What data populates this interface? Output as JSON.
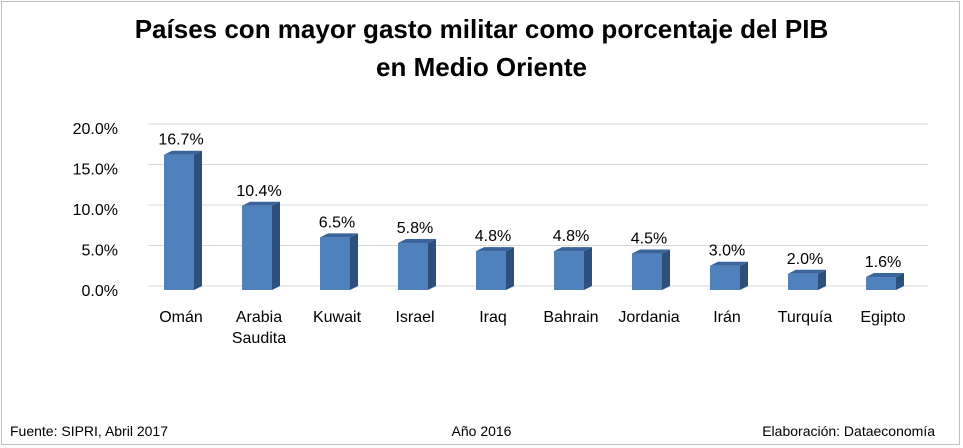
{
  "chart_data": {
    "type": "bar",
    "title_lines": [
      "Países con mayor gasto militar como porcentaje del PIB",
      "en Medio Oriente"
    ],
    "categories": [
      [
        "Omán"
      ],
      [
        "Arabia",
        "Saudita"
      ],
      [
        "Kuwait"
      ],
      [
        "Israel"
      ],
      [
        "Iraq"
      ],
      [
        "Bahrain"
      ],
      [
        "Jordania"
      ],
      [
        "Irán"
      ],
      [
        "Turquía"
      ],
      [
        "Egipto"
      ]
    ],
    "values": [
      16.7,
      10.4,
      6.5,
      5.8,
      4.8,
      4.8,
      4.5,
      3.0,
      2.0,
      1.6
    ],
    "data_labels": [
      "16.7%",
      "10.4%",
      "6.5%",
      "5.8%",
      "4.8%",
      "4.8%",
      "4.5%",
      "3.0%",
      "2.0%",
      "1.6%"
    ],
    "y_ticks": [
      0,
      5,
      10,
      15,
      20
    ],
    "y_tick_labels": [
      "0.0%",
      "5.0%",
      "10.0%",
      "15.0%",
      "20.0%"
    ],
    "ylim": [
      0,
      20
    ],
    "grid": true,
    "legend": "none",
    "bar_color": "#4f81bd",
    "bar_side_color": "#2c4f7c",
    "bar_top_color": "#3a649b"
  },
  "footer": {
    "source": "Fuente: SIPRI, Abril 2017",
    "year": "Año 2016",
    "credit": "Elaboración: Dataeconomía"
  }
}
